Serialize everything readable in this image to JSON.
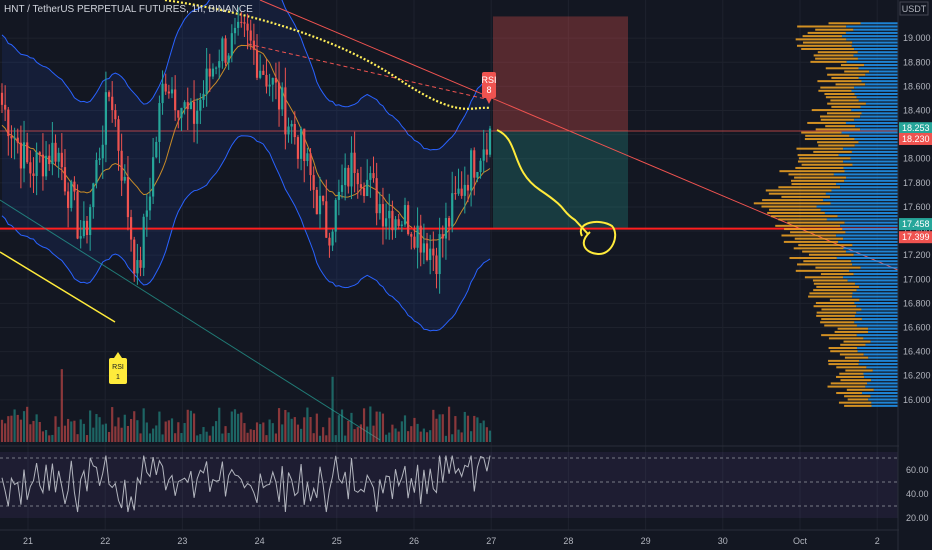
{
  "header": {
    "symbol": "HNT / TetherUS PERPETUAL FUTURES, 1h, BINANCE"
  },
  "currency_label": "USDT",
  "colors": {
    "background": "#131722",
    "up": "#26a69a",
    "down": "#ef5350",
    "support_line": "#ff1e1e",
    "bollinger": "#2962ff",
    "ema": "#f5a623",
    "ma_dotted": "#ffee58",
    "annotation": "#ffeb3b",
    "rsi_line": "#b2b5be",
    "profile_orange": "#f5a623",
    "profile_blue": "#2196f3"
  },
  "chart_data": {
    "type": "candlestick",
    "title": "HNT / TetherUS PERPETUAL FUTURES, 1h, BINANCE",
    "y_axis": {
      "label": "USDT",
      "ylim": [
        15.75,
        19.25
      ],
      "ticks": [
        "19.000",
        "18.800",
        "18.600",
        "18.400",
        "18.200",
        "18.000",
        "17.800",
        "17.600",
        "17.400",
        "17.200",
        "17.000",
        "16.800",
        "16.600",
        "16.400",
        "16.200",
        "16.000"
      ]
    },
    "x_axis": {
      "ticks": [
        "21",
        "22",
        "23",
        "24",
        "25",
        "26",
        "27",
        "28",
        "29",
        "30",
        "Oct",
        "2"
      ],
      "range_days": [
        "20.8",
        "2.9"
      ]
    },
    "price_tags": [
      {
        "value": "18.253",
        "role": "last price",
        "color": "#26a69a"
      },
      {
        "value": "18.230",
        "role": "ma",
        "color": "#ef5350"
      },
      {
        "value": "17.458",
        "role": "support",
        "color": "#26a69a"
      },
      {
        "value": "17.399",
        "role": "support",
        "color": "#ef5350"
      }
    ],
    "horizontal_lines": [
      {
        "price": 17.42,
        "color": "#ff1e1e",
        "label": "support"
      },
      {
        "price": 18.23,
        "color": "#ef5350",
        "label": "entry"
      }
    ],
    "short_position": {
      "entry": 18.23,
      "stop": 19.18,
      "target": 17.42
    },
    "signals": [
      {
        "label": "RSI",
        "sub": "8",
        "type": "sell"
      },
      {
        "label": "RSI",
        "sub": "1",
        "type": "buy"
      }
    ],
    "rsi": {
      "ticks": [
        "60.00",
        "40.00",
        "20.00"
      ],
      "upper": 70,
      "lower": 30,
      "mid": 50
    },
    "series_trend": [
      18.45,
      17.9,
      18.1,
      17.3,
      18.6,
      17.0,
      18.7,
      18.3,
      18.9,
      19.0,
      18.6,
      18.1,
      17.4,
      18.0,
      17.6,
      17.5,
      17.2,
      17.8,
      18.25
    ]
  }
}
